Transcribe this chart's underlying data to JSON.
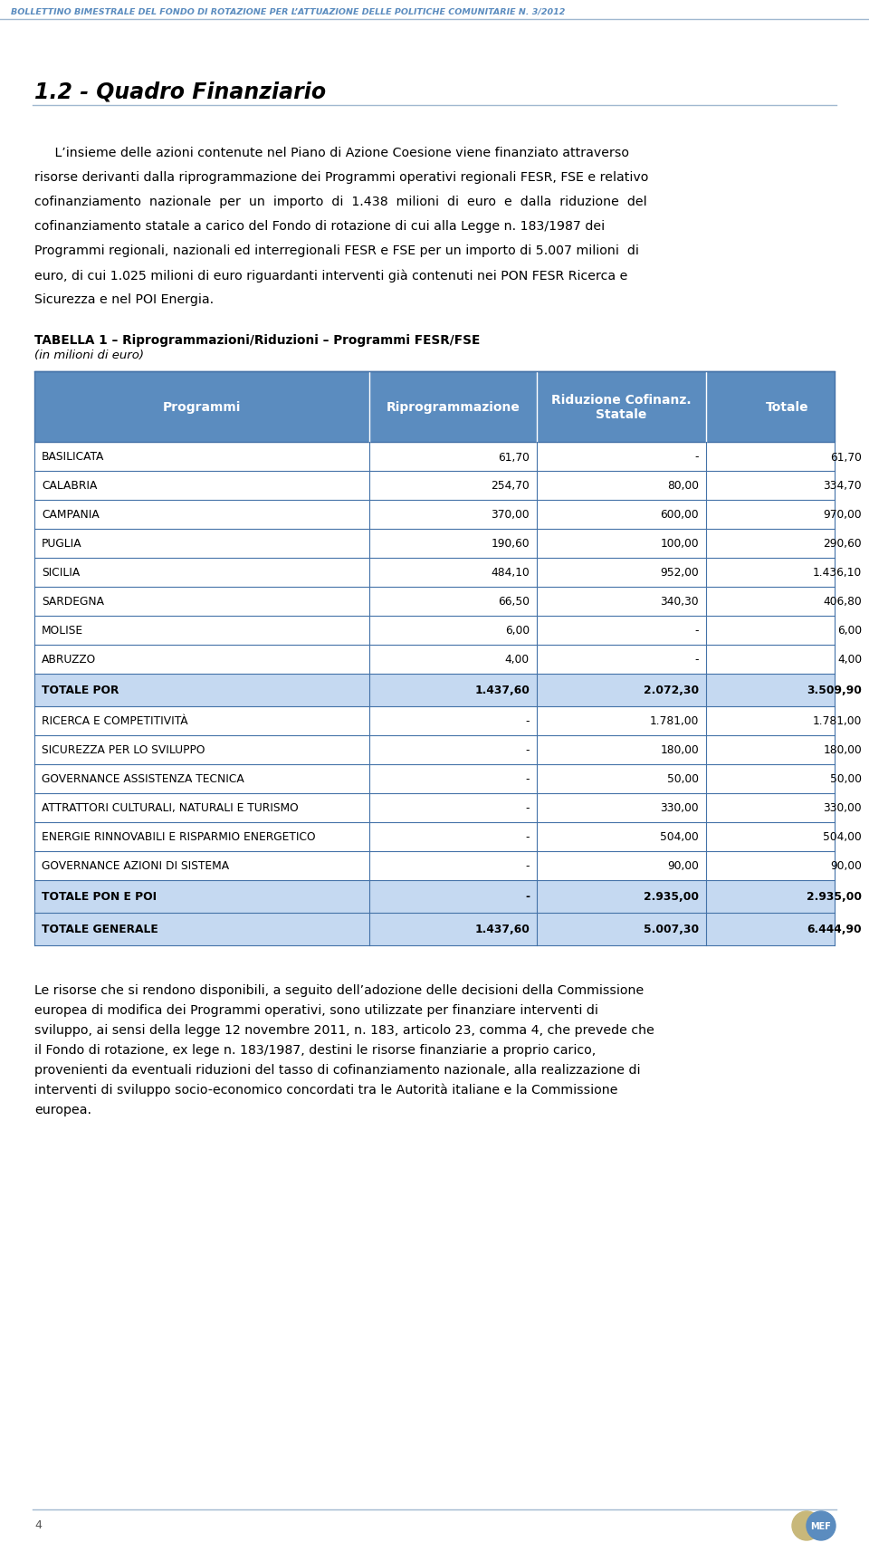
{
  "header_text": "BOLLETTINO BIMESTRALE DEL FONDO DI ROTAZIONE PER L’ATTUAZIONE DELLE POLITICHE COMUNITARIE N. 3/2012",
  "section_title": "1.2 - Quadro Finanziario",
  "intro_lines": [
    "     L’insieme delle azioni contenute nel Piano di Azione Coesione viene finanziato attraverso",
    "risorse derivanti dalla riprogrammazione dei Programmi operativi regionali FESR, FSE e relativo",
    "cofinanziamento  nazionale  per  un  importo  di  1.438  milioni  di  euro  e  dalla  riduzione  del",
    "cofinanziamento statale a carico del Fondo di rotazione di cui alla Legge n. 183/1987 dei",
    "Programmi regionali, nazionali ed interregionali FESR e FSE per un importo di 5.007 milioni  di",
    "euro, di cui 1.025 milioni di euro riguardanti interventi già contenuti nei PON FESR Ricerca e",
    "Sicurezza e nel POI Energia."
  ],
  "table_title": "TABELLA 1 – Riprogrammazioni/Riduzioni – Programmi FESR/FSE",
  "table_subtitle": "(in milioni di euro)",
  "col_headers": [
    "Programmi",
    "Riprogrammazione",
    "Riduzione Cofinanz.\nStatale",
    "Totale"
  ],
  "rows": [
    {
      "label": "BASILICATA",
      "col2": "61,70",
      "col3": "-",
      "col4": "61,70",
      "bold": false,
      "shaded": false
    },
    {
      "label": "CALABRIA",
      "col2": "254,70",
      "col3": "80,00",
      "col4": "334,70",
      "bold": false,
      "shaded": false
    },
    {
      "label": "CAMPANIA",
      "col2": "370,00",
      "col3": "600,00",
      "col4": "970,00",
      "bold": false,
      "shaded": false
    },
    {
      "label": "PUGLIA",
      "col2": "190,60",
      "col3": "100,00",
      "col4": "290,60",
      "bold": false,
      "shaded": false
    },
    {
      "label": "SICILIA",
      "col2": "484,10",
      "col3": "952,00",
      "col4": "1.436,10",
      "bold": false,
      "shaded": false
    },
    {
      "label": "SARDEGNA",
      "col2": "66,50",
      "col3": "340,30",
      "col4": "406,80",
      "bold": false,
      "shaded": false
    },
    {
      "label": "MOLISE",
      "col2": "6,00",
      "col3": "-",
      "col4": "6,00",
      "bold": false,
      "shaded": false
    },
    {
      "label": "ABRUZZO",
      "col2": "4,00",
      "col3": "-",
      "col4": "4,00",
      "bold": false,
      "shaded": false
    },
    {
      "label": "TOTALE POR",
      "col2": "1.437,60",
      "col3": "2.072,30",
      "col4": "3.509,90",
      "bold": true,
      "shaded": true
    },
    {
      "label": "RICERCA E COMPETITIVITÀ",
      "col2": "-",
      "col3": "1.781,00",
      "col4": "1.781,00",
      "bold": false,
      "shaded": false
    },
    {
      "label": "SICUREZZA PER LO SVILUPPO",
      "col2": "-",
      "col3": "180,00",
      "col4": "180,00",
      "bold": false,
      "shaded": false
    },
    {
      "label": "GOVERNANCE ASSISTENZA TECNICA",
      "col2": "-",
      "col3": "50,00",
      "col4": "50,00",
      "bold": false,
      "shaded": false
    },
    {
      "label": "ATTRATTORI CULTURALI, NATURALI E TURISMO",
      "col2": "-",
      "col3": "330,00",
      "col4": "330,00",
      "bold": false,
      "shaded": false
    },
    {
      "label": "ENERGIE RINNOVABILI E RISPARMIO ENERGETICO",
      "col2": "-",
      "col3": "504,00",
      "col4": "504,00",
      "bold": false,
      "shaded": false
    },
    {
      "label": "GOVERNANCE AZIONI DI SISTEMA",
      "col2": "-",
      "col3": "90,00",
      "col4": "90,00",
      "bold": false,
      "shaded": false
    },
    {
      "label": "TOTALE PON E POI",
      "col2": "-",
      "col3": "2.935,00",
      "col4": "2.935,00",
      "bold": true,
      "shaded": true
    },
    {
      "label": "TOTALE GENERALE",
      "col2": "1.437,60",
      "col3": "5.007,30",
      "col4": "6.444,90",
      "bold": true,
      "shaded": true
    }
  ],
  "footer_lines": [
    "Le risorse che si rendono disponibili, a seguito dell’adozione delle decisioni della Commissione",
    "europea di modifica dei Programmi operativi, sono utilizzate per finanziare interventi di",
    "sviluppo, ai sensi della legge 12 novembre 2011, n. 183, articolo 23, comma 4, che prevede che",
    "il Fondo di rotazione, ex lege n. 183/1987, destini le risorse finanziarie a proprio carico,",
    "provenienti da eventuali riduzioni del tasso di cofinanziamento nazionale, alla realizzazione di",
    "interventi di sviluppo socio-economico concordati tra le Autorità italiane e la Commissione",
    "europea."
  ],
  "header_color": "#5b8cbf",
  "header_text_color": "#ffffff",
  "shaded_row_color": "#c5d9f1",
  "border_color": "#4472a8",
  "page_number": "4",
  "logo_text": "MEF"
}
